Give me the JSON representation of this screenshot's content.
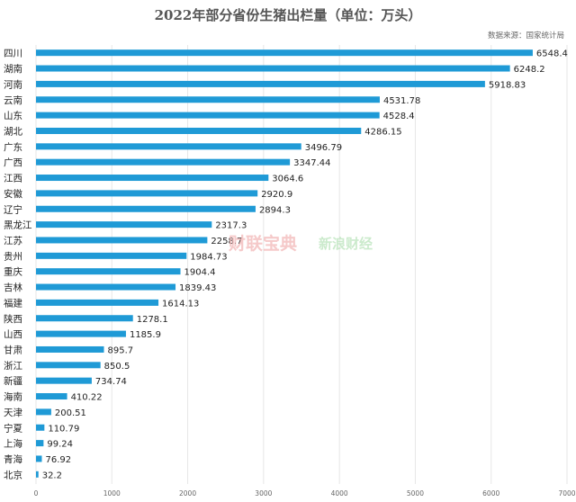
{
  "chart_data": {
    "type": "bar",
    "orientation": "horizontal",
    "title": "2022年部分省份生猪出栏量（单位：万头）",
    "source": "数据来源：国家统计局",
    "categories": [
      "四川",
      "湖南",
      "河南",
      "云南",
      "山东",
      "湖北",
      "广东",
      "广西",
      "江西",
      "安徽",
      "辽宁",
      "黑龙江",
      "江苏",
      "贵州",
      "重庆",
      "吉林",
      "福建",
      "陕西",
      "山西",
      "甘肃",
      "浙江",
      "新疆",
      "海南",
      "天津",
      "宁夏",
      "上海",
      "青海",
      "北京"
    ],
    "values": [
      6548.4,
      6248.2,
      5918.83,
      4531.78,
      4528.4,
      4286.15,
      3496.79,
      3347.44,
      3064.6,
      2920.9,
      2894.3,
      2317.3,
      2258.7,
      1984.73,
      1904.4,
      1839.43,
      1614.13,
      1278.1,
      1185.9,
      895.7,
      850.5,
      734.74,
      410.22,
      200.51,
      110.79,
      99.24,
      76.92,
      32.2
    ],
    "value_labels": [
      "6548.4",
      "6248.2",
      "5918.83",
      "4531.78",
      "4528.4",
      "4286.15",
      "3496.79",
      "3347.44",
      "3064.6",
      "2920.9",
      "2894.3",
      "2317.3",
      "2258.7",
      "1984.73",
      "1904.4",
      "1839.43",
      "1614.13",
      "1278.1",
      "1185.9",
      "895.7",
      "850.5",
      "734.74",
      "410.22",
      "200.51",
      "110.79",
      "99.24",
      "76.92",
      "32.2"
    ],
    "xlim": [
      0,
      7000
    ],
    "xticks": [
      "0",
      "1000",
      "2000",
      "3000",
      "4000",
      "5000",
      "6000",
      "7000"
    ],
    "bar_color": "#1f9ad6",
    "grid": true,
    "xlabel": "",
    "ylabel": ""
  },
  "watermarks": [
    "财联宝典",
    "新浪财经"
  ]
}
